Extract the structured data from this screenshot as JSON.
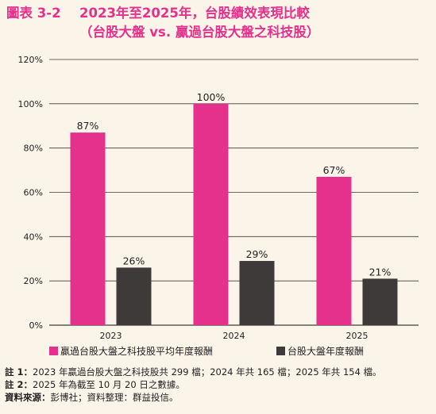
{
  "title": {
    "tag": "圖表 3-2",
    "main": "2023年至2025年，台股績效表現比較",
    "sub": "（台股大盤 vs. 贏過台股大盤之科技股）"
  },
  "chart_data": {
    "type": "bar",
    "categories": [
      "2023",
      "2024",
      "2025"
    ],
    "series": [
      {
        "name": "贏過台股大盤之科技股平均年度報酬",
        "values": [
          87,
          100,
          67
        ],
        "labels": [
          "87%",
          "100%",
          "67%"
        ],
        "color": "#e5318c"
      },
      {
        "name": "台股大盤年度報酬",
        "values": [
          26,
          29,
          21
        ],
        "labels": [
          "26%",
          "29%",
          "21%"
        ],
        "color": "#3e3a39"
      }
    ],
    "ylim": [
      0,
      120
    ],
    "yticks": [
      0,
      20,
      40,
      60,
      80,
      100,
      120
    ],
    "ytick_labels": [
      "0%",
      "20%",
      "40%",
      "60%",
      "80%",
      "100%",
      "120%"
    ],
    "grid": true,
    "legend_position": "bottom"
  },
  "notes": [
    {
      "head": "註 1：",
      "text": "2023 年贏過台股大盤之科技股共 299 檔；2024 年共 165 檔；2025 年共 154 檔。"
    },
    {
      "head": "註 2：",
      "text": "2025 年為截至 10 月 20 日之數據。"
    },
    {
      "head": "資料來源：",
      "text": "彭博社；資料整理：群益投信。"
    }
  ]
}
